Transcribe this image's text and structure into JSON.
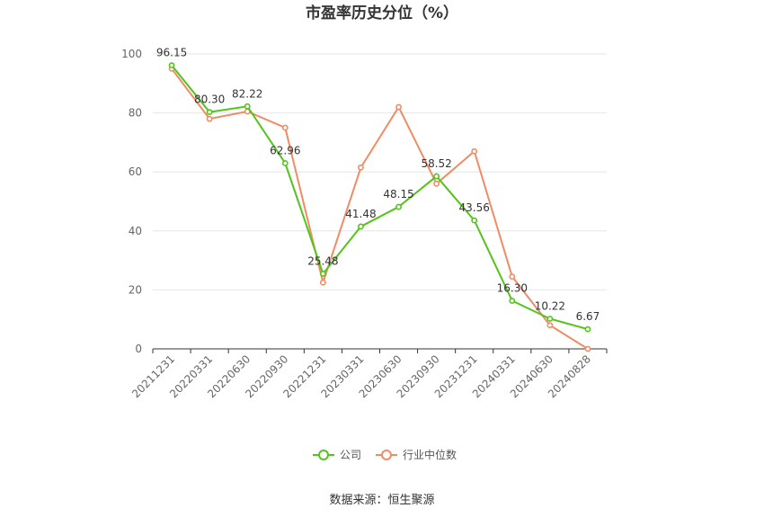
{
  "chart_data": {
    "type": "line",
    "title": "市盈率历史分位（%）",
    "categories": [
      "20211231",
      "20220331",
      "20220630",
      "20220930",
      "20221231",
      "20230331",
      "20230630",
      "20230930",
      "20231231",
      "20240331",
      "20240630",
      "20240828"
    ],
    "series": [
      {
        "name": "公司",
        "color": "#52c41a",
        "values": [
          96.15,
          80.3,
          82.22,
          62.96,
          25.48,
          41.48,
          48.15,
          58.52,
          43.56,
          16.3,
          10.22,
          6.67
        ],
        "labels": [
          "96.15",
          "80.30",
          "82.22",
          "62.96",
          "25.48",
          "41.48",
          "48.15",
          "58.52",
          "43.56",
          "16.30",
          "10.22",
          "6.67"
        ]
      },
      {
        "name": "行业中位数",
        "color": "#f08c64",
        "values": [
          95.0,
          78.0,
          80.5,
          75.0,
          22.5,
          61.5,
          82.0,
          56.0,
          67.0,
          24.5,
          8.0,
          0.0
        ]
      }
    ],
    "ylim": [
      0,
      100
    ],
    "yticks": [
      "0",
      "20",
      "40",
      "60",
      "80",
      "100"
    ],
    "xlabel": "",
    "ylabel": "",
    "grid": true,
    "legend_position": "bottom"
  },
  "source_note": "数据来源：恒生聚源"
}
